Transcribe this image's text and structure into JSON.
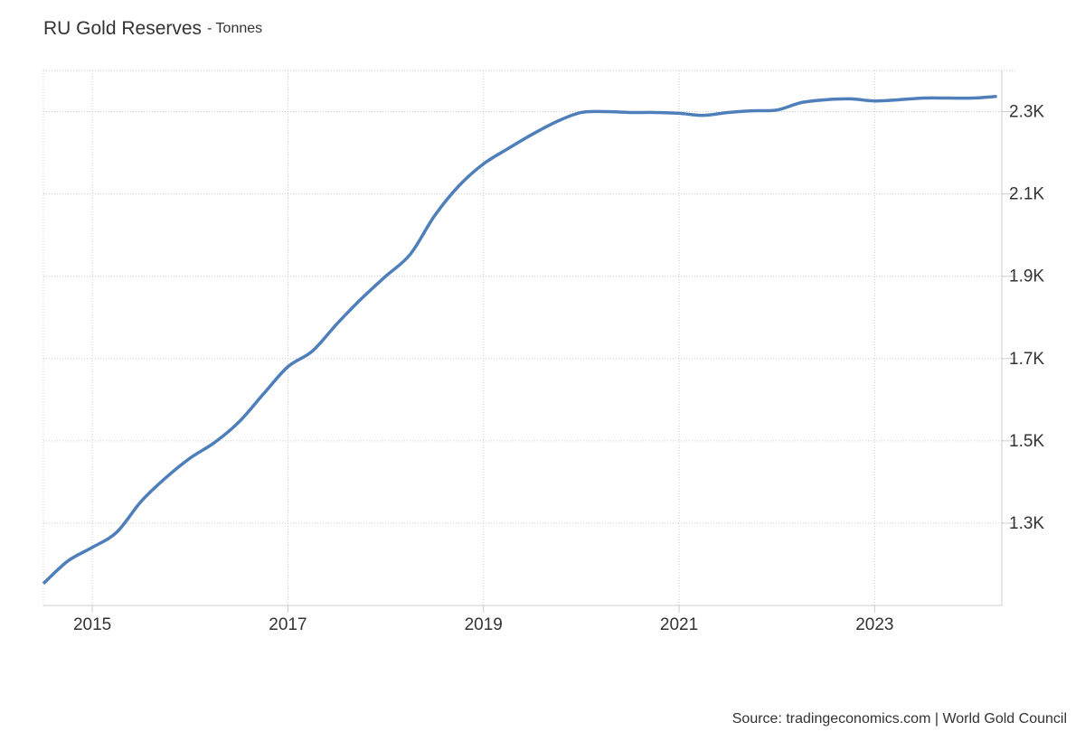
{
  "chart_data": {
    "type": "line",
    "title": "RU Gold Reserves",
    "subtitle": "- Tonnes",
    "source": "Source: tradingeconomics.com | World Gold Council",
    "x": [
      2014.5,
      2014.75,
      2015.0,
      2015.25,
      2015.5,
      2015.75,
      2016.0,
      2016.25,
      2016.5,
      2016.75,
      2017.0,
      2017.25,
      2017.5,
      2017.75,
      2018.0,
      2018.25,
      2018.5,
      2018.75,
      2019.0,
      2019.25,
      2019.5,
      2019.75,
      2020.0,
      2020.25,
      2020.5,
      2020.75,
      2021.0,
      2021.25,
      2021.5,
      2021.75,
      2022.0,
      2022.25,
      2022.5,
      2022.75,
      2023.0,
      2023.25,
      2023.5,
      2023.75,
      2024.0,
      2024.25
    ],
    "series": [
      {
        "name": "RU Gold Reserves",
        "color": "#4e7fbb",
        "values": [
          1153,
          1208,
          1241,
          1278,
          1353,
          1410,
          1458,
          1496,
          1546,
          1614,
          1680,
          1718,
          1784,
          1845,
          1900,
          1953,
          2047,
          2120,
          2173,
          2210,
          2245,
          2276,
          2298,
          2300,
          2298,
          2298,
          2296,
          2291,
          2298,
          2302,
          2304,
          2322,
          2329,
          2331,
          2326,
          2329,
          2333,
          2333,
          2333,
          2337
        ]
      }
    ],
    "xlim": [
      2014.5,
      2024.3
    ],
    "xticks": [
      2015,
      2017,
      2019,
      2021,
      2023
    ],
    "ylim": [
      1100,
      2400
    ],
    "yticks": [
      {
        "value": 1300,
        "label": "1.3K"
      },
      {
        "value": 1500,
        "label": "1.5K"
      },
      {
        "value": 1700,
        "label": "1.7K"
      },
      {
        "value": 1900,
        "label": "1.9K"
      },
      {
        "value": 2100,
        "label": "2.1K"
      },
      {
        "value": 2300,
        "label": "2.3K"
      }
    ],
    "grid": true
  }
}
